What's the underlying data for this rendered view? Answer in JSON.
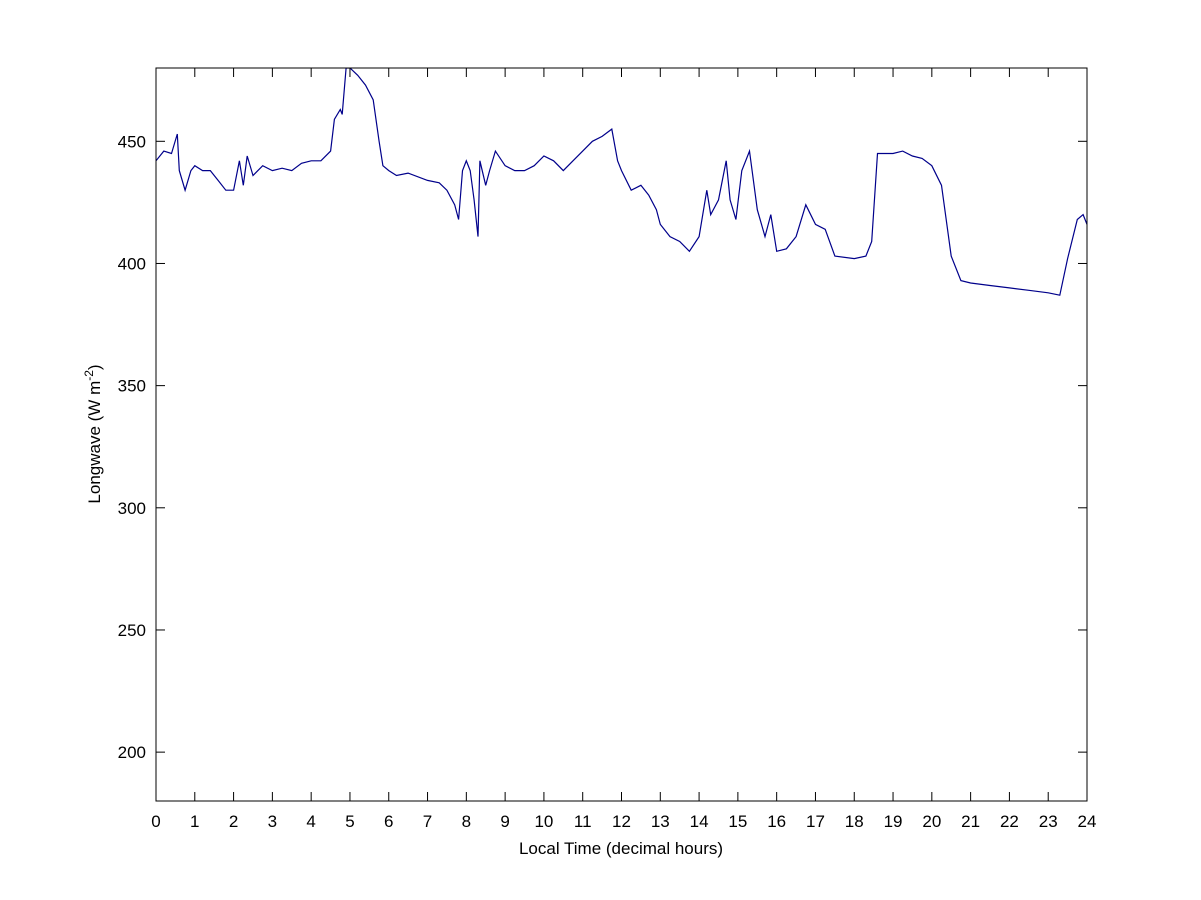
{
  "chart_data": {
    "type": "line",
    "x_label": "Local Time (decimal hours)",
    "y_label_parts": [
      "Longwave (W m",
      "-2",
      ")"
    ],
    "xlim": [
      0,
      24
    ],
    "ylim": [
      180,
      480
    ],
    "xticks": [
      0,
      1,
      2,
      3,
      4,
      5,
      6,
      7,
      8,
      9,
      10,
      11,
      12,
      13,
      14,
      15,
      16,
      17,
      18,
      19,
      20,
      21,
      22,
      23,
      24
    ],
    "yticks": [
      200,
      250,
      300,
      350,
      400,
      450
    ],
    "grid": false,
    "series": [
      {
        "color": "#00008b",
        "x": [
          0,
          0.2,
          0.4,
          0.55,
          0.6,
          0.75,
          0.9,
          1,
          1.2,
          1.4,
          1.6,
          1.8,
          2,
          2.15,
          2.25,
          2.35,
          2.5,
          2.75,
          3,
          3.25,
          3.5,
          3.75,
          4,
          4.25,
          4.5,
          4.6,
          4.75,
          4.8,
          4.9,
          5,
          5.2,
          5.4,
          5.6,
          5.75,
          5.85,
          6,
          6.2,
          6.5,
          7,
          7.3,
          7.5,
          7.7,
          7.8,
          7.9,
          8,
          8.1,
          8.2,
          8.3,
          8.35,
          8.5,
          8.6,
          8.75,
          9,
          9.25,
          9.5,
          9.75,
          10,
          10.25,
          10.5,
          10.75,
          11,
          11.25,
          11.5,
          11.75,
          11.9,
          12,
          12.25,
          12.5,
          12.7,
          12.9,
          13,
          13.25,
          13.5,
          13.75,
          14,
          14.2,
          14.3,
          14.5,
          14.7,
          14.8,
          14.95,
          15.1,
          15.3,
          15.5,
          15.7,
          15.85,
          16,
          16.25,
          16.5,
          16.75,
          17,
          17.25,
          17.5,
          18,
          18.3,
          18.45,
          18.6,
          19,
          19.25,
          19.5,
          19.75,
          20,
          20.25,
          20.5,
          20.75,
          21,
          21.5,
          22,
          22.5,
          23,
          23.3,
          23.5,
          23.75,
          23.9,
          24
        ],
        "values": [
          442,
          446,
          445,
          453,
          438,
          430,
          438,
          440,
          438,
          438,
          434,
          430,
          430,
          442,
          432,
          444,
          436,
          440,
          438,
          439,
          438,
          441,
          442,
          442,
          446,
          459,
          463,
          461,
          480,
          480,
          477,
          473,
          467,
          450,
          440,
          438,
          436,
          437,
          434,
          433,
          430,
          424,
          418,
          438,
          442,
          438,
          426,
          411,
          442,
          432,
          438,
          446,
          440,
          438,
          438,
          440,
          444,
          442,
          438,
          442,
          446,
          450,
          452,
          455,
          442,
          438,
          430,
          432,
          428,
          422,
          416,
          411,
          409,
          405,
          411,
          430,
          420,
          426,
          442,
          426,
          418,
          438,
          446,
          422,
          411,
          420,
          405,
          406,
          411,
          424,
          416,
          414,
          403,
          402,
          403,
          409,
          445,
          445,
          446,
          444,
          443,
          440,
          432,
          403,
          393,
          392,
          391,
          390,
          389,
          388,
          387,
          402,
          418,
          420,
          416
        ]
      }
    ]
  }
}
